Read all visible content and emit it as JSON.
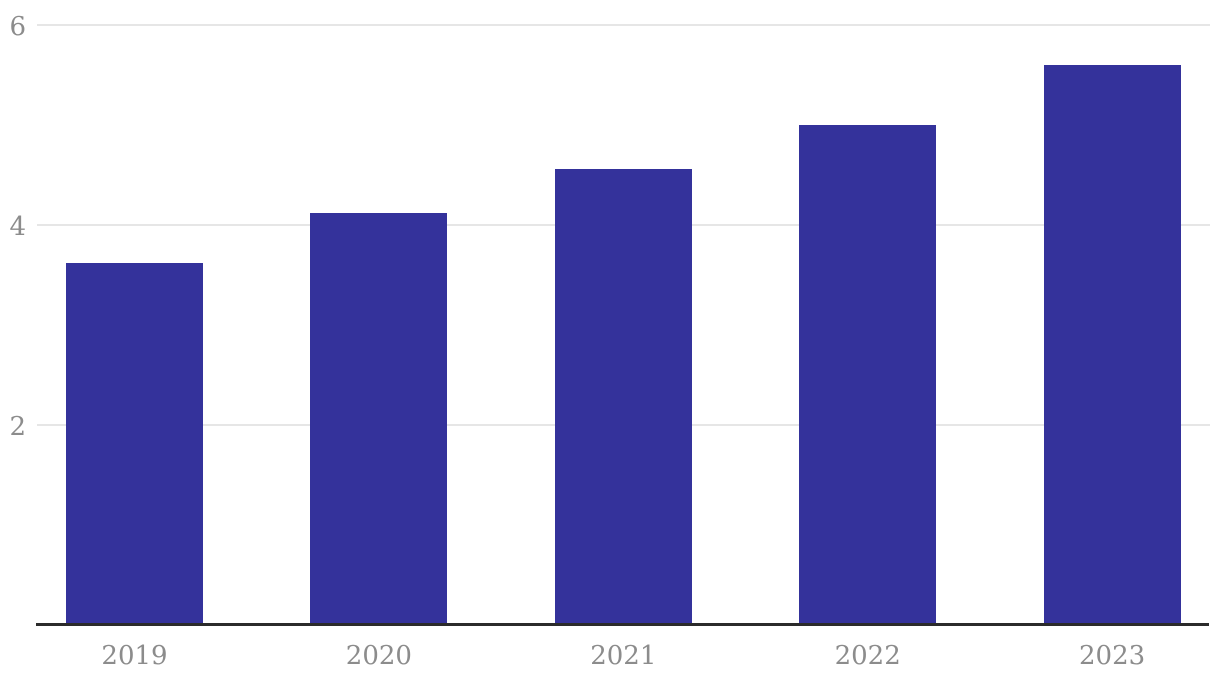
{
  "chart_data": {
    "type": "bar",
    "categories": [
      "2019",
      "2020",
      "2021",
      "2022",
      "2023"
    ],
    "values": [
      3.62,
      4.12,
      4.56,
      5.0,
      5.6
    ],
    "title": "",
    "xlabel": "",
    "ylabel": "",
    "ylim": [
      0,
      6
    ],
    "yticks": [
      2,
      4,
      6
    ],
    "ytick_labels": [
      "2",
      "4",
      "6"
    ],
    "grid": "horizontal",
    "legend": "none",
    "colors": {
      "bar": "#34329b",
      "tick_label": "#8c8c8c",
      "gridline": "#e6e6e6",
      "axis_line": "#2b2b2b",
      "background": "#ffffff"
    }
  }
}
